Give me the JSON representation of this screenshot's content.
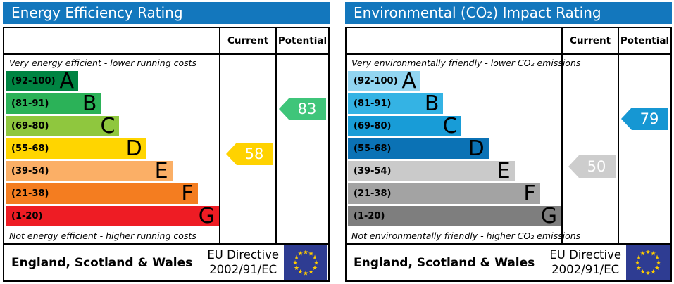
{
  "eu_flag": {
    "background": "#2e3c92",
    "star_color": "#ffcc00"
  },
  "chart_data": [
    {
      "type": "bar",
      "title": "Energy Efficiency Rating",
      "header_color": "#1377bd",
      "columns": [
        "Current",
        "Potential"
      ],
      "top_caption": "Very energy efficient - lower running costs",
      "bottom_caption": "Not energy efficient - higher running costs",
      "bands": [
        {
          "letter": "A",
          "range": "(92-100)",
          "low": 92,
          "high": 100,
          "width_pct": 34,
          "color": "#008442"
        },
        {
          "letter": "B",
          "range": "(81-91)",
          "low": 81,
          "high": 91,
          "width_pct": 44.7,
          "color": "#2bb258"
        },
        {
          "letter": "C",
          "range": "(69-80)",
          "low": 69,
          "high": 80,
          "width_pct": 53.3,
          "color": "#8fc73e"
        },
        {
          "letter": "D",
          "range": "(55-68)",
          "low": 55,
          "high": 68,
          "width_pct": 65.9,
          "color": "#ffd500"
        },
        {
          "letter": "E",
          "range": "(39-54)",
          "low": 39,
          "high": 54,
          "width_pct": 78.1,
          "color": "#fbaf66"
        },
        {
          "letter": "F",
          "range": "(21-38)",
          "low": 21,
          "high": 38,
          "width_pct": 90,
          "color": "#f47d20"
        },
        {
          "letter": "G",
          "range": "(1-20)",
          "low": 1,
          "high": 20,
          "width_pct": 100,
          "color": "#ee1c24"
        }
      ],
      "current": {
        "value": 58,
        "band": "D",
        "color": "#ffd200"
      },
      "potential": {
        "value": 83,
        "band": "B",
        "color": "#3fc57a"
      },
      "footer": {
        "region": "England, Scotland & Wales",
        "directive": [
          "EU Directive",
          "2002/91/EC"
        ]
      }
    },
    {
      "type": "bar",
      "title": "Environmental (CO₂) Impact Rating",
      "header_color": "#1377bd",
      "columns": [
        "Current",
        "Potential"
      ],
      "top_caption": "Very environmentally friendly - lower CO₂ emissions",
      "bottom_caption": "Not environmentally friendly - higher CO₂ emissions",
      "bands": [
        {
          "letter": "A",
          "range": "(92-100)",
          "low": 92,
          "high": 100,
          "width_pct": 34,
          "color": "#92d5f1"
        },
        {
          "letter": "B",
          "range": "(81-91)",
          "low": 81,
          "high": 91,
          "width_pct": 44.7,
          "color": "#34b3e4"
        },
        {
          "letter": "C",
          "range": "(69-80)",
          "low": 69,
          "high": 80,
          "width_pct": 53.3,
          "color": "#189cd7"
        },
        {
          "letter": "D",
          "range": "(55-68)",
          "low": 55,
          "high": 68,
          "width_pct": 65.9,
          "color": "#0b72b5"
        },
        {
          "letter": "E",
          "range": "(39-54)",
          "low": 39,
          "high": 54,
          "width_pct": 78.1,
          "color": "#cacaca"
        },
        {
          "letter": "F",
          "range": "(21-38)",
          "low": 21,
          "high": 38,
          "width_pct": 90,
          "color": "#a3a3a3"
        },
        {
          "letter": "G",
          "range": "(1-20)",
          "low": 1,
          "high": 20,
          "width_pct": 100,
          "color": "#7e7e7e"
        }
      ],
      "current": {
        "value": 50,
        "band": "E",
        "color": "#cdcdcd"
      },
      "potential": {
        "value": 79,
        "band": "C",
        "color": "#1697d3"
      },
      "footer": {
        "region": "England, Scotland & Wales",
        "directive": [
          "EU Directive",
          "2002/91/EC"
        ]
      }
    }
  ]
}
